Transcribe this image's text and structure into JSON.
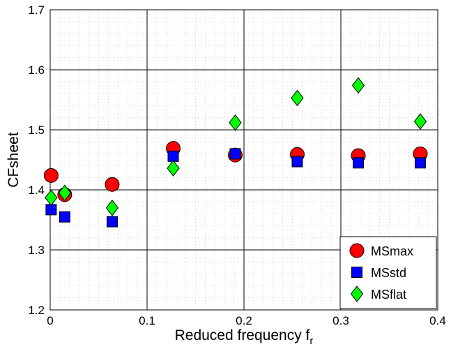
{
  "chart_data": {
    "type": "scatter",
    "xlabel": "Reduced frequency f",
    "xlabel_subscript": "r",
    "ylabel": "CFsheet",
    "xlim": [
      0,
      0.4
    ],
    "ylim": [
      1.2,
      1.7
    ],
    "x_ticks": [
      "0",
      "0.1",
      "0.2",
      "0.3",
      "0.4"
    ],
    "y_ticks": [
      "1.2",
      "1.3",
      "1.4",
      "1.5",
      "1.6",
      "1.7"
    ],
    "grid": true,
    "minor_grid": true,
    "legend_position": "bottom-right",
    "series": [
      {
        "name": "MSmax",
        "marker": "circle",
        "color": "#ff0000",
        "x": [
          0.001,
          0.015,
          0.064,
          0.127,
          0.191,
          0.255,
          0.318,
          0.382
        ],
        "y": [
          1.424,
          1.392,
          1.409,
          1.469,
          1.458,
          1.459,
          1.457,
          1.46
        ]
      },
      {
        "name": "MSstd",
        "marker": "square",
        "color": "#0000ff",
        "x": [
          0.001,
          0.015,
          0.064,
          0.127,
          0.191,
          0.255,
          0.318,
          0.382
        ],
        "y": [
          1.367,
          1.355,
          1.347,
          1.456,
          1.46,
          1.447,
          1.445,
          1.445
        ]
      },
      {
        "name": "MSflat",
        "marker": "diamond",
        "color": "#00ff00",
        "x": [
          0.001,
          0.015,
          0.064,
          0.127,
          0.191,
          0.255,
          0.318,
          0.382
        ],
        "y": [
          1.387,
          1.395,
          1.37,
          1.436,
          1.512,
          1.553,
          1.574,
          1.514
        ]
      }
    ]
  }
}
